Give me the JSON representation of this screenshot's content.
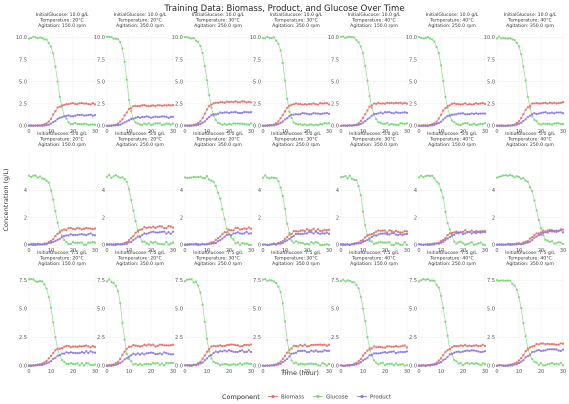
{
  "chart_data": {
    "type": "line",
    "title": "Training Data: Biomass, Product, and Glucose Over Time",
    "xlabel": "Time (hour)",
    "ylabel": "Concentration (g/L)",
    "xlim": [
      0,
      30
    ],
    "xticks": [
      0,
      10,
      20,
      30
    ],
    "xtick_labels": [
      "0",
      "10",
      "20",
      "30"
    ],
    "grid": true,
    "legend": {
      "position": "bottom",
      "title": "Component",
      "entries": [
        {
          "name": "Biomass",
          "color": "#e8746b"
        },
        {
          "name": "Glucose",
          "color": "#7fd67c"
        },
        {
          "name": "Product",
          "color": "#8d7fe0"
        }
      ]
    },
    "rows": [
      {
        "initial_glucose": 10.0,
        "ylim": [
          0,
          10.5
        ],
        "yticks": [
          0,
          2.5,
          5.0,
          7.5,
          10.0
        ],
        "ytick_labels": [
          "0.0",
          "2.5",
          "5.0",
          "7.5",
          "10.0"
        ]
      },
      {
        "initial_glucose": 5.0,
        "ylim": [
          0,
          6.8
        ],
        "yticks": [
          0,
          2,
          4
        ],
        "ytick_labels": [
          "0",
          "2",
          "4"
        ]
      },
      {
        "initial_glucose": 7.5,
        "ylim": [
          0,
          8.3
        ],
        "yticks": [
          0,
          2.5,
          5.0,
          7.5
        ],
        "ytick_labels": [
          "0.0",
          "2.5",
          "5.0",
          "7.5"
        ]
      }
    ],
    "facet_label_format": {
      "glucose": "InitialGlucose: {g} g/L",
      "temperature": "Temperature: {t}°C",
      "agitation": "Agitation: {a} rpm"
    },
    "facets": [
      {
        "row": 0,
        "col": 0,
        "glucose": "10.0",
        "temperature": "20",
        "agitation": "150.0",
        "series": {
          "glucose": {
            "start": 10.0,
            "drop_center": 13,
            "drop_width": 2.5,
            "end": 0.2
          },
          "biomass": {
            "start": 0.05,
            "rise_center": 11,
            "rise_width": 2.5,
            "end": 2.5
          },
          "product": {
            "start": 0.02,
            "rise_center": 12,
            "rise_width": 3,
            "end": 1.2
          }
        }
      },
      {
        "row": 0,
        "col": 1,
        "glucose": "10.0",
        "temperature": "20",
        "agitation": "350.0",
        "series": {
          "glucose": {
            "start": 10.0,
            "drop_center": 9,
            "drop_width": 2.0,
            "end": 0.2
          },
          "biomass": {
            "start": 0.05,
            "rise_center": 8,
            "rise_width": 2.5,
            "end": 2.3
          },
          "product": {
            "start": 0.02,
            "rise_center": 9,
            "rise_width": 3,
            "end": 1.0
          }
        }
      },
      {
        "row": 0,
        "col": 2,
        "glucose": "10.0",
        "temperature": "30",
        "agitation": "250.0",
        "series": {
          "glucose": {
            "start": 10.0,
            "drop_center": 10,
            "drop_width": 2.5,
            "end": 0.2
          },
          "biomass": {
            "start": 0.05,
            "rise_center": 9,
            "rise_width": 2.5,
            "end": 2.7
          },
          "product": {
            "start": 0.02,
            "rise_center": 10,
            "rise_width": 3,
            "end": 1.5
          }
        }
      },
      {
        "row": 0,
        "col": 3,
        "glucose": "10.0",
        "temperature": "30",
        "agitation": "350.0",
        "series": {
          "glucose": {
            "start": 10.0,
            "drop_center": 10,
            "drop_width": 2.0,
            "end": 0.2
          },
          "biomass": {
            "start": 0.05,
            "rise_center": 9,
            "rise_width": 2.5,
            "end": 2.5
          },
          "product": {
            "start": 0.02,
            "rise_center": 10,
            "rise_width": 3,
            "end": 1.4
          }
        }
      },
      {
        "row": 0,
        "col": 4,
        "glucose": "10.0",
        "temperature": "40",
        "agitation": "150.0",
        "series": {
          "glucose": {
            "start": 10.0,
            "drop_center": 12,
            "drop_width": 2.5,
            "end": 0.2
          },
          "biomass": {
            "start": 0.05,
            "rise_center": 11,
            "rise_width": 2.5,
            "end": 2.6
          },
          "product": {
            "start": 0.02,
            "rise_center": 12,
            "rise_width": 3,
            "end": 1.5
          }
        }
      },
      {
        "row": 0,
        "col": 5,
        "glucose": "10.0",
        "temperature": "40",
        "agitation": "250.0",
        "series": {
          "glucose": {
            "start": 10.0,
            "drop_center": 11,
            "drop_width": 2.5,
            "end": 0.2
          },
          "biomass": {
            "start": 0.05,
            "rise_center": 10,
            "rise_width": 2.5,
            "end": 2.5
          },
          "product": {
            "start": 0.02,
            "rise_center": 11,
            "rise_width": 3,
            "end": 1.4
          }
        }
      },
      {
        "row": 0,
        "col": 6,
        "glucose": "10.0",
        "temperature": "40",
        "agitation": "350.0",
        "series": {
          "glucose": {
            "start": 10.0,
            "drop_center": 13,
            "drop_width": 2.5,
            "end": 0.2
          },
          "biomass": {
            "start": 0.05,
            "rise_center": 12,
            "rise_width": 2.5,
            "end": 2.6
          },
          "product": {
            "start": 0.02,
            "rise_center": 13,
            "rise_width": 3,
            "end": 1.5
          }
        }
      },
      {
        "row": 1,
        "col": 0,
        "glucose": "5.0",
        "temperature": "20",
        "agitation": "150.0",
        "series": {
          "glucose": {
            "start": 5.0,
            "drop_center": 12,
            "drop_width": 2.5,
            "end": 0.1
          },
          "biomass": {
            "start": 0.05,
            "rise_center": 12,
            "rise_width": 3,
            "end": 1.2
          },
          "product": {
            "start": 0.02,
            "rise_center": 13,
            "rise_width": 3.5,
            "end": 0.8
          }
        }
      },
      {
        "row": 1,
        "col": 1,
        "glucose": "5.0",
        "temperature": "20",
        "agitation": "250.0",
        "series": {
          "glucose": {
            "start": 5.0,
            "drop_center": 12,
            "drop_width": 2.5,
            "end": 0.1
          },
          "biomass": {
            "start": 0.05,
            "rise_center": 12,
            "rise_width": 3,
            "end": 1.3
          },
          "product": {
            "start": 0.02,
            "rise_center": 13,
            "rise_width": 3.5,
            "end": 0.9
          }
        }
      },
      {
        "row": 1,
        "col": 2,
        "glucose": "5.0",
        "temperature": "20",
        "agitation": "350.0",
        "series": {
          "glucose": {
            "start": 5.0,
            "drop_center": 17,
            "drop_width": 3,
            "end": 0.1
          },
          "biomass": {
            "start": 0.05,
            "rise_center": 16,
            "rise_width": 3.5,
            "end": 1.2
          },
          "product": {
            "start": 0.02,
            "rise_center": 17,
            "rise_width": 3.5,
            "end": 0.9
          }
        }
      },
      {
        "row": 1,
        "col": 3,
        "glucose": "5.0",
        "temperature": "30",
        "agitation": "250.0",
        "series": {
          "glucose": {
            "start": 5.0,
            "drop_center": 10,
            "drop_width": 2.0,
            "end": 0.1
          },
          "biomass": {
            "start": 0.05,
            "rise_center": 11,
            "rise_width": 3,
            "end": 1.1
          },
          "product": {
            "start": 0.02,
            "rise_center": 12,
            "rise_width": 3.5,
            "end": 0.9
          }
        }
      },
      {
        "row": 1,
        "col": 4,
        "glucose": "5.0",
        "temperature": "30",
        "agitation": "350.0",
        "series": {
          "glucose": {
            "start": 5.0,
            "drop_center": 10,
            "drop_width": 2.0,
            "end": 0.1
          },
          "biomass": {
            "start": 0.05,
            "rise_center": 11,
            "rise_width": 3,
            "end": 1.0
          },
          "product": {
            "start": 0.02,
            "rise_center": 12,
            "rise_width": 3.5,
            "end": 0.8
          }
        }
      },
      {
        "row": 1,
        "col": 5,
        "glucose": "5.0",
        "temperature": "40",
        "agitation": "150.0",
        "series": {
          "glucose": {
            "start": 5.0,
            "drop_center": 12,
            "drop_width": 2.5,
            "end": 0.1
          },
          "biomass": {
            "start": 0.05,
            "rise_center": 12,
            "rise_width": 3,
            "end": 1.0
          },
          "product": {
            "start": 0.02,
            "rise_center": 13,
            "rise_width": 3.5,
            "end": 0.9
          }
        }
      },
      {
        "row": 1,
        "col": 6,
        "glucose": "5.0",
        "temperature": "40",
        "agitation": "250.0",
        "series": {
          "glucose": {
            "start": 5.0,
            "drop_center": 18,
            "drop_width": 3,
            "end": 0.1
          },
          "biomass": {
            "start": 0.05,
            "rise_center": 16,
            "rise_width": 3.5,
            "end": 1.1
          },
          "product": {
            "start": 0.02,
            "rise_center": 17,
            "rise_width": 3.5,
            "end": 1.0
          }
        }
      },
      {
        "row": 2,
        "col": 0,
        "glucose": "7.5",
        "temperature": "20",
        "agitation": "150.0",
        "series": {
          "glucose": {
            "start": 7.5,
            "drop_center": 11,
            "drop_width": 2.5,
            "end": 0.15
          },
          "biomass": {
            "start": 0.05,
            "rise_center": 10,
            "rise_width": 3,
            "end": 1.7
          },
          "product": {
            "start": 0.02,
            "rise_center": 11,
            "rise_width": 3.5,
            "end": 1.2
          }
        }
      },
      {
        "row": 2,
        "col": 1,
        "glucose": "7.5",
        "temperature": "20",
        "agitation": "350.0",
        "series": {
          "glucose": {
            "start": 7.5,
            "drop_center": 7,
            "drop_width": 2.0,
            "end": 0.15
          },
          "biomass": {
            "start": 0.05,
            "rise_center": 7,
            "rise_width": 2.5,
            "end": 1.8
          },
          "product": {
            "start": 0.02,
            "rise_center": 8,
            "rise_width": 3,
            "end": 1.1
          }
        }
      },
      {
        "row": 2,
        "col": 2,
        "glucose": "7.5",
        "temperature": "30",
        "agitation": "250.0",
        "series": {
          "glucose": {
            "start": 7.5,
            "drop_center": 9,
            "drop_width": 2.0,
            "end": 0.15
          },
          "biomass": {
            "start": 0.05,
            "rise_center": 9,
            "rise_width": 2.5,
            "end": 1.8
          },
          "product": {
            "start": 0.02,
            "rise_center": 10,
            "rise_width": 3,
            "end": 1.3
          }
        }
      },
      {
        "row": 2,
        "col": 3,
        "glucose": "7.5",
        "temperature": "30",
        "agitation": "350.0",
        "series": {
          "glucose": {
            "start": 7.5,
            "drop_center": 10,
            "drop_width": 2.0,
            "end": 0.15
          },
          "biomass": {
            "start": 0.05,
            "rise_center": 10,
            "rise_width": 2.5,
            "end": 1.8
          },
          "product": {
            "start": 0.02,
            "rise_center": 11,
            "rise_width": 3,
            "end": 1.3
          }
        }
      },
      {
        "row": 2,
        "col": 4,
        "glucose": "7.5",
        "temperature": "40",
        "agitation": "150.0",
        "series": {
          "glucose": {
            "start": 7.5,
            "drop_center": 11,
            "drop_width": 2.5,
            "end": 0.15
          },
          "biomass": {
            "start": 0.05,
            "rise_center": 10,
            "rise_width": 3,
            "end": 1.7
          },
          "product": {
            "start": 0.02,
            "rise_center": 11,
            "rise_width": 3.5,
            "end": 1.2
          }
        }
      },
      {
        "row": 2,
        "col": 5,
        "glucose": "7.5",
        "temperature": "40",
        "agitation": "250.0",
        "series": {
          "glucose": {
            "start": 7.5,
            "drop_center": 12,
            "drop_width": 2.5,
            "end": 0.15
          },
          "biomass": {
            "start": 0.05,
            "rise_center": 11,
            "rise_width": 3,
            "end": 1.8
          },
          "product": {
            "start": 0.02,
            "rise_center": 12,
            "rise_width": 3.5,
            "end": 1.3
          }
        }
      },
      {
        "row": 2,
        "col": 6,
        "glucose": "7.5",
        "temperature": "40",
        "agitation": "350.0",
        "series": {
          "glucose": {
            "start": 7.5,
            "drop_center": 12,
            "drop_width": 2.5,
            "end": 0.15
          },
          "biomass": {
            "start": 0.05,
            "rise_center": 12,
            "rise_width": 3,
            "end": 1.9
          },
          "product": {
            "start": 0.02,
            "rise_center": 13,
            "rise_width": 3.5,
            "end": 1.4
          }
        }
      }
    ]
  }
}
